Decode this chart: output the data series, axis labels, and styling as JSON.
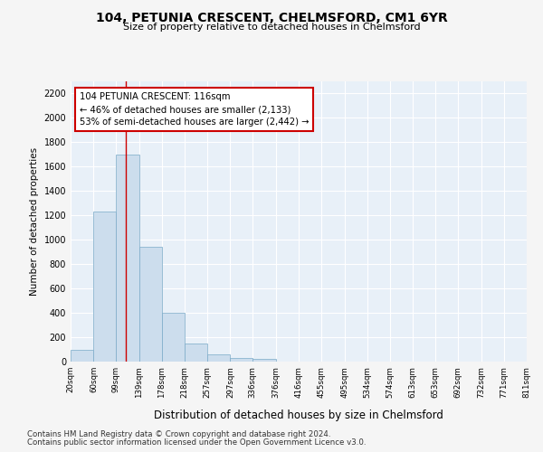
{
  "title": "104, PETUNIA CRESCENT, CHELMSFORD, CM1 6YR",
  "subtitle": "Size of property relative to detached houses in Chelmsford",
  "xlabel": "Distribution of detached houses by size in Chelmsford",
  "ylabel": "Number of detached properties",
  "bar_color": "#ccdded",
  "bar_edge_color": "#7aaac8",
  "bg_color": "#e8f0f8",
  "fig_bg_color": "#f5f5f5",
  "grid_color": "#ffffff",
  "annotation_text_line1": "104 PETUNIA CRESCENT: 116sqm",
  "annotation_text_line2": "← 46% of detached houses are smaller (2,133)",
  "annotation_text_line3": "53% of semi-detached houses are larger (2,442) →",
  "property_line_x": 116,
  "bin_edges": [
    20,
    60,
    99,
    139,
    178,
    218,
    257,
    297,
    336,
    376,
    416,
    455,
    495,
    534,
    574,
    613,
    653,
    692,
    732,
    771,
    811
  ],
  "bar_heights": [
    100,
    1230,
    1700,
    940,
    400,
    150,
    60,
    30,
    20,
    3,
    2,
    1,
    1,
    0,
    0,
    0,
    0,
    0,
    0,
    0
  ],
  "ylim": [
    0,
    2300
  ],
  "yticks": [
    0,
    200,
    400,
    600,
    800,
    1000,
    1200,
    1400,
    1600,
    1800,
    2000,
    2200
  ],
  "footnote1": "Contains HM Land Registry data © Crown copyright and database right 2024.",
  "footnote2": "Contains public sector information licensed under the Open Government Licence v3.0."
}
